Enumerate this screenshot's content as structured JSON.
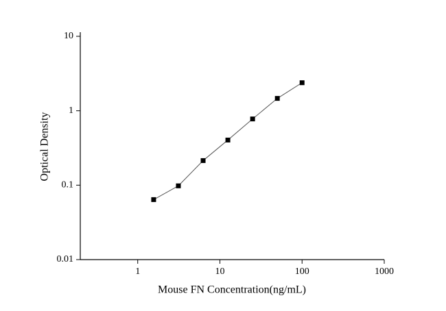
{
  "chart_data": {
    "type": "scatter",
    "x_label": "Mouse FN Concentration(ng/mL)",
    "y_label": "Optical Density",
    "x": [
      1.5625,
      3.125,
      6.25,
      12.5,
      25,
      50,
      100
    ],
    "series": [
      {
        "values": [
          0.064,
          0.098,
          0.214,
          0.404,
          0.776,
          1.465,
          2.38
        ],
        "color": "#000000",
        "line_color": "#555555"
      }
    ],
    "xlim": [
      0.2,
      1000
    ],
    "ylim": [
      0.01,
      10
    ],
    "xticks": [
      1,
      10,
      100,
      1000
    ],
    "yticks": [
      0.01,
      0.1,
      1,
      10
    ],
    "xscale": "log",
    "yscale": "log",
    "grid": false
  }
}
